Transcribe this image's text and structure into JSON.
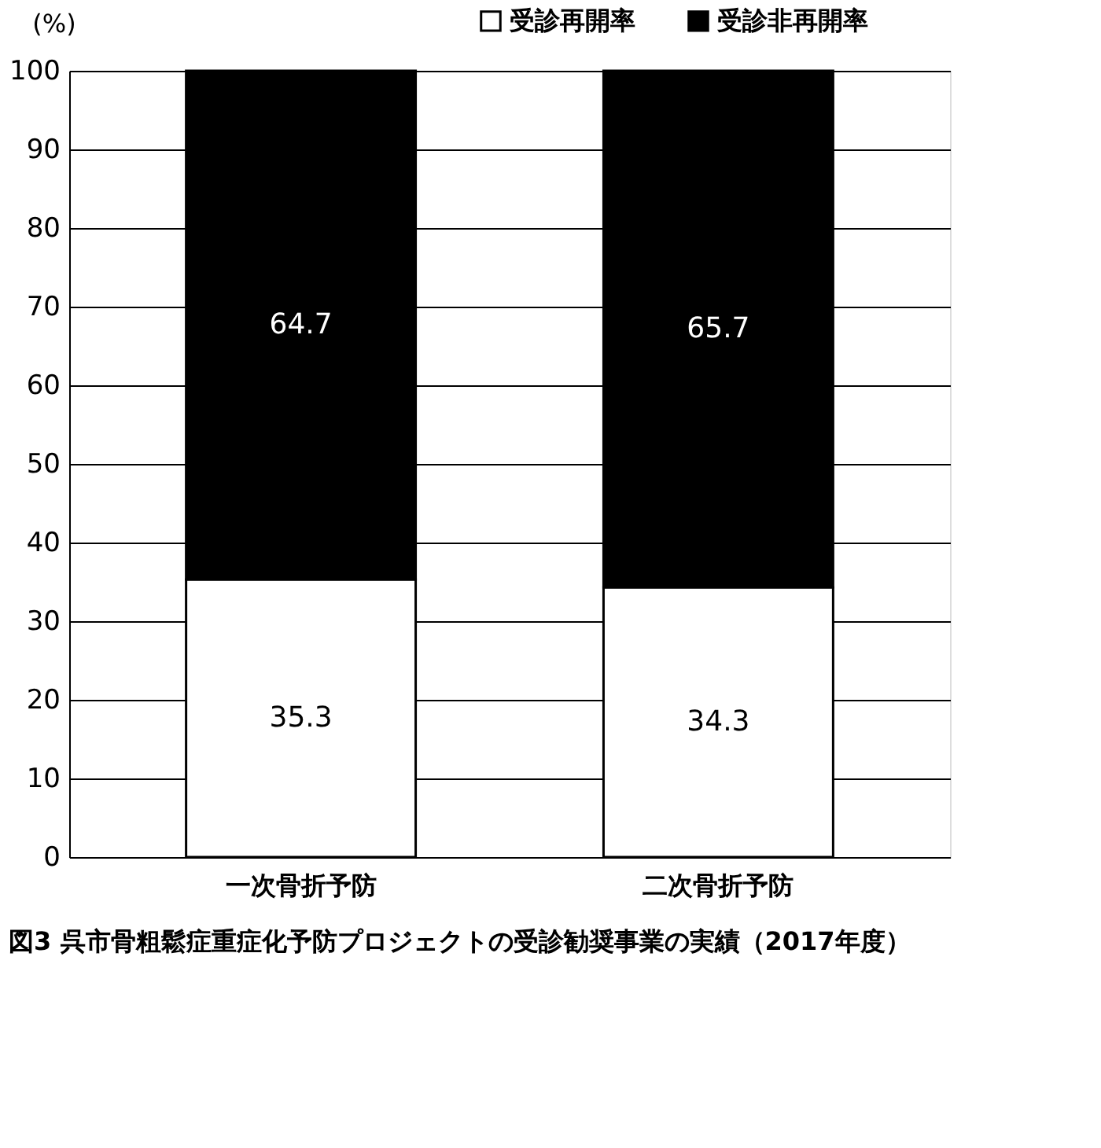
{
  "chart_data": {
    "type": "bar",
    "stacked": true,
    "ylabel": "(%)",
    "title": "図3  呉市骨粗鬆症重症化予防プロジェクトの受診勧奨事業の実績（2017年度）",
    "categories": [
      "一次骨折予防",
      "二次骨折予防"
    ],
    "series": [
      {
        "name": "受診再開率",
        "color": "#ffffff",
        "values": [
          35.3,
          34.3
        ]
      },
      {
        "name": "受診非再開率",
        "color": "#000000",
        "values": [
          64.7,
          65.7
        ]
      }
    ],
    "ylim": [
      0,
      100
    ],
    "yticks": [
      0,
      10,
      20,
      30,
      40,
      50,
      60,
      70,
      80,
      90,
      100
    ],
    "grid": "y",
    "legend": "top right",
    "data_labels": true
  }
}
